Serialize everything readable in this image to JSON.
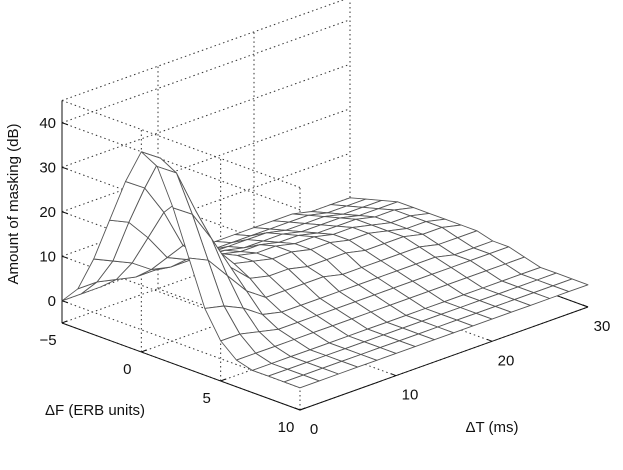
{
  "chart_data": {
    "type": "surface",
    "title": "",
    "xlabel": "ΔT (ms)",
    "ylabel": "ΔF (ERB units)",
    "zlabel": "Amount of masking (dB)",
    "x_ticks": [
      "0",
      "10",
      "20",
      "30"
    ],
    "y_ticks": [
      "−5",
      "0",
      "5",
      "10"
    ],
    "z_ticks": [
      "0",
      "10",
      "20",
      "30",
      "40"
    ],
    "xlim": [
      0,
      30
    ],
    "ylim": [
      -5,
      10
    ],
    "zlim": [
      -5,
      45
    ],
    "grid": true,
    "box": "open back panels with dotted gridlines",
    "mesh_color": "#555555",
    "face_color": "#ffffff",
    "x": [
      0,
      2,
      4,
      6,
      8,
      10,
      12,
      14,
      16,
      18,
      20,
      22,
      24,
      26,
      28,
      30
    ],
    "y": [
      -5,
      -4,
      -3,
      -2,
      -1,
      0,
      1,
      2,
      3,
      4,
      5,
      6,
      7,
      8,
      9,
      10
    ],
    "z": [
      [
        0,
        0,
        0,
        1,
        1,
        1,
        1,
        1,
        1,
        1,
        1,
        1,
        1,
        0,
        0,
        0
      ],
      [
        4,
        4,
        3,
        2,
        2,
        2,
        2,
        2,
        2,
        2,
        2,
        2,
        2,
        1,
        1,
        1
      ],
      [
        12,
        10,
        8,
        5,
        4,
        4,
        4,
        4,
        4,
        4,
        3,
        3,
        3,
        2,
        2,
        2
      ],
      [
        22,
        20,
        15,
        9,
        7,
        6,
        6,
        5,
        5,
        5,
        4,
        4,
        4,
        3,
        3,
        3
      ],
      [
        32,
        29,
        22,
        13,
        9,
        8,
        7,
        7,
        6,
        6,
        5,
        5,
        5,
        4,
        4,
        3
      ],
      [
        40,
        37,
        26,
        16,
        11,
        9,
        8,
        8,
        7,
        7,
        6,
        6,
        5,
        4,
        4,
        3
      ],
      [
        38,
        35,
        25,
        15,
        10,
        9,
        8,
        8,
        7,
        7,
        6,
        6,
        5,
        4,
        4,
        3
      ],
      [
        30,
        27,
        20,
        12,
        8,
        7,
        7,
        6,
        6,
        6,
        5,
        5,
        5,
        4,
        4,
        3
      ],
      [
        20,
        18,
        13,
        8,
        5,
        5,
        5,
        5,
        4,
        4,
        4,
        4,
        4,
        3,
        3,
        3
      ],
      [
        10,
        9,
        7,
        4,
        3,
        3,
        3,
        3,
        3,
        3,
        3,
        3,
        3,
        2,
        2,
        2
      ],
      [
        4,
        4,
        3,
        2,
        2,
        2,
        2,
        2,
        2,
        2,
        2,
        2,
        2,
        2,
        2,
        2
      ],
      [
        1,
        1,
        1,
        1,
        1,
        1,
        1,
        1,
        1,
        1,
        1,
        1,
        1,
        1,
        1,
        1
      ],
      [
        0,
        0,
        0,
        0,
        0,
        0,
        0,
        0,
        0,
        0,
        0,
        0,
        0,
        0,
        0,
        0
      ],
      [
        0,
        0,
        0,
        0,
        0,
        0,
        0,
        0,
        0,
        0,
        0,
        0,
        0,
        0,
        0,
        0
      ],
      [
        0,
        0,
        0,
        0,
        0,
        0,
        0,
        0,
        0,
        0,
        0,
        0,
        0,
        0,
        0,
        0
      ],
      [
        0,
        0,
        0,
        0,
        0,
        0,
        0,
        0,
        0,
        0,
        0,
        0,
        0,
        0,
        0,
        0
      ]
    ]
  }
}
